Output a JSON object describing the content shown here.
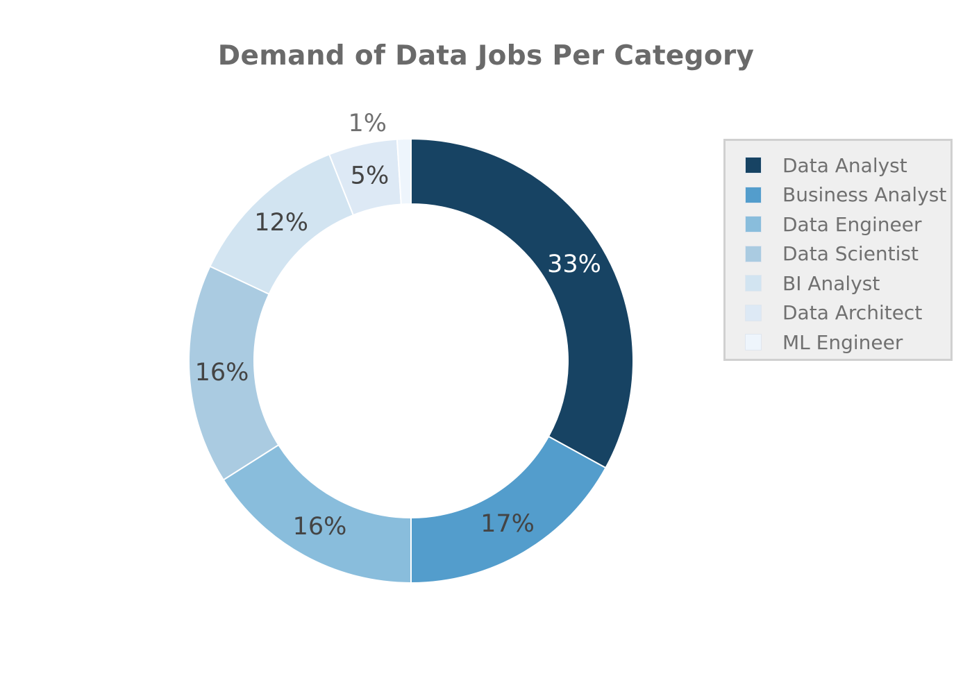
{
  "chart_data": {
    "type": "pie",
    "donut": true,
    "title": "Demand of Data Jobs Per Category",
    "categories": [
      "Data Analyst",
      "Business Analyst",
      "Data Engineer",
      "Data Scientist",
      "BI Analyst",
      "Data Architect",
      "ML Engineer"
    ],
    "values": [
      33,
      17,
      16,
      16,
      12,
      5,
      1
    ],
    "labels": [
      "33%",
      "17%",
      "16%",
      "16%",
      "12%",
      "5%",
      "1%"
    ],
    "colors": [
      "#174363",
      "#539dcc",
      "#89bddc",
      "#aacbe1",
      "#d2e4f1",
      "#dde9f5",
      "#eef5fc"
    ],
    "label_colors": [
      "#ffffff",
      "#444444",
      "#444444",
      "#444444",
      "#444444",
      "#444444",
      "#707070"
    ],
    "legend_position": "right",
    "start_angle": "12 o'clock",
    "direction": "clockwise"
  }
}
